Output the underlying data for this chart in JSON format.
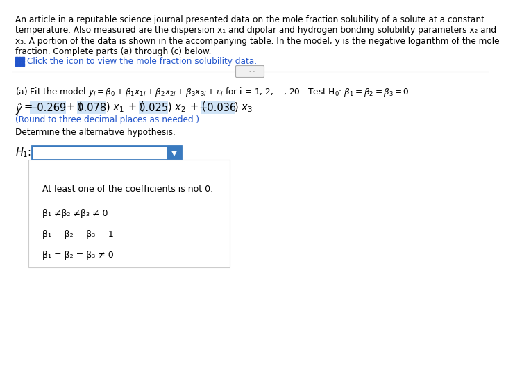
{
  "bg_color": "#ffffff",
  "text_color": "#000000",
  "blue_color": "#2255cc",
  "highlight_bg": "#d0e4f7",
  "dropdown_border": "#3a7abf",
  "para_lines": [
    "An article in a reputable science journal presented data on the mole fraction solubility of a solute at a constant",
    "temperature. Also measured are the dispersion x₁ and dipolar and hydrogen bonding solubility parameters x₂ and",
    "x₃. A portion of the data is shown in the accompanying table. In the model, y is the negative logarithm of the mole",
    "fraction. Complete parts (a) through (c) below."
  ],
  "click_text": "Click the icon to view the mole fraction solubility data.",
  "round_note": "(Round to three decimal places as needed.)",
  "determine_text": "Determine the alternative hypothesis.",
  "dropdown_options": [
    "At least one of the coefficients is not 0.",
    "β₁ ≠β₂ ≠β₃ ≠ 0",
    "β₁ = β₂ = β₃ = 1",
    "β₁ = β₂ = β₃ ≠ 0"
  ],
  "coeff0": "−0.269",
  "coeff1": "0.078",
  "coeff2": "0.025",
  "coeff3": "−0.036"
}
